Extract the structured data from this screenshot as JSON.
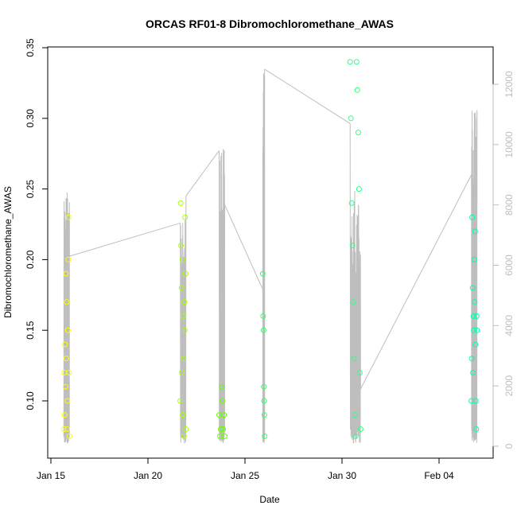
{
  "chart_data": {
    "type": "scatter",
    "title": "ORCAS RF01-8 Dibromochloromethane_AWAS",
    "xlabel": "Date",
    "ylabel": "Dibromochloromethane_AWAS",
    "x_unit": "days",
    "xlim": [
      "Jan 15 00:00",
      "Feb 07 00:00"
    ],
    "ylim": [
      0.07,
      0.35
    ],
    "x_ticks": [
      {
        "date": "Jan 15",
        "label": "Jan 15"
      },
      {
        "date": "Jan 20",
        "label": "Jan 20"
      },
      {
        "date": "Jan 25",
        "label": "Jan 25"
      },
      {
        "date": "Jan 30",
        "label": "Jan 30"
      },
      {
        "date": "Feb 04",
        "label": "Feb 04"
      }
    ],
    "y_ticks": [
      {
        "value": 0.1,
        "label": "0.10"
      },
      {
        "value": 0.15,
        "label": "0.15"
      },
      {
        "value": 0.2,
        "label": "0.20"
      },
      {
        "value": 0.25,
        "label": "0.25"
      },
      {
        "value": 0.3,
        "label": "0.30"
      },
      {
        "value": 0.35,
        "label": "0.35"
      }
    ],
    "y2lim": [
      -300,
      13100
    ],
    "y2_ticks": [
      {
        "value": 0,
        "label": "0"
      },
      {
        "value": 2000,
        "label": "2000"
      },
      {
        "value": 4000,
        "label": "4000"
      },
      {
        "value": 6000,
        "label": "6000"
      },
      {
        "value": 8000,
        "label": "8000"
      },
      {
        "value": 10000,
        "label": "10000"
      },
      {
        "value": 12000,
        "label": "12000"
      }
    ],
    "grid": false,
    "legend": "none",
    "colors": {
      "line": "#bebebe",
      "axis": "#000000",
      "right_axis": "#bebebe"
    },
    "flights": [
      {
        "x": [
          "Jan 15 16:00",
          "Jan 15 16:30",
          "Jan 15 17:00",
          "Jan 15 17:30",
          "Jan 15 18:00",
          "Jan 15 18:30",
          "Jan 15 19:00",
          "Jan 15 19:30",
          "Jan 15 20:00",
          "Jan 15 20:30",
          "Jan 15 21:00",
          "Jan 15 21:30",
          "Jan 15 22:00",
          "Jan 15 22:30",
          "Jan 15 23:00"
        ],
        "y": [
          0.08,
          0.12,
          0.09,
          0.14,
          0.11,
          0.19,
          0.13,
          0.17,
          0.08,
          0.1,
          0.15,
          0.2,
          0.23,
          0.12,
          0.075
        ],
        "color": "#ffff00",
        "alt_start": 300,
        "alt_peak": 8500,
        "alt_end": 6300
      },
      {
        "x": [
          "Jan 21 16:00",
          "Jan 21 16:30",
          "Jan 21 17:00",
          "Jan 21 17:30",
          "Jan 21 18:00",
          "Jan 21 18:30",
          "Jan 21 19:00",
          "Jan 21 19:30",
          "Jan 21 20:00",
          "Jan 21 20:30",
          "Jan 21 21:00",
          "Jan 21 21:30",
          "Jan 21 22:00",
          "Jan 21 22:30",
          "Jan 21 23:00"
        ],
        "y": [
          0.1,
          0.24,
          0.21,
          0.18,
          0.12,
          0.2,
          0.09,
          0.16,
          0.13,
          0.075,
          0.17,
          0.15,
          0.23,
          0.19,
          0.08
        ],
        "color": "#a6ff00",
        "alt_start": 7400,
        "alt_peak": 7600,
        "alt_end": 8300
      },
      {
        "x": [
          "Jan 23 16:00",
          "Jan 23 17:00",
          "Jan 23 18:00",
          "Jan 23 19:00",
          "Jan 23 20:00",
          "Jan 23 21:00",
          "Jan 23 22:00",
          "Jan 23 23:00"
        ],
        "y": [
          0.09,
          0.075,
          0.08,
          0.11,
          0.1,
          0.08,
          0.09,
          0.075
        ],
        "color": "#66ff00",
        "alt_start": 9800,
        "alt_peak": 9900,
        "alt_end": 8000
      },
      {
        "x": [
          "Jan 25 22:00",
          "Jan 25 22:30",
          "Jan 25 23:00",
          "Jan 25 23:20",
          "Jan 25 23:40",
          "Jan 26 00:00",
          "Jan 26 00:20"
        ],
        "y": [
          0.19,
          0.16,
          0.15,
          0.11,
          0.1,
          0.09,
          0.075
        ],
        "color": "#33ff66",
        "alt_start": 5200,
        "alt_peak": 12500,
        "alt_end": 12500
      },
      {
        "x": [
          "Jan 30 10:00",
          "Jan 30 11:00",
          "Jan 30 12:00",
          "Jan 30 13:00",
          "Jan 30 14:00",
          "Jan 30 15:00",
          "Jan 30 16:00",
          "Jan 30 17:00",
          "Jan 30 18:00",
          "Jan 30 19:00",
          "Jan 30 20:00",
          "Jan 30 21:00",
          "Jan 30 22:00",
          "Jan 30 23:00"
        ],
        "y": [
          0.34,
          0.3,
          0.24,
          0.21,
          0.17,
          0.13,
          0.09,
          0.075,
          0.34,
          0.32,
          0.29,
          0.25,
          0.12,
          0.08
        ],
        "color": "#33ff88",
        "alt_start": 10700,
        "alt_peak": 8500,
        "alt_end": 1900
      },
      {
        "x": [
          "Feb 05 16:00",
          "Feb 05 16:30",
          "Feb 05 17:00",
          "Feb 05 17:30",
          "Feb 05 18:00",
          "Feb 05 18:30",
          "Feb 05 19:00",
          "Feb 05 19:30",
          "Feb 05 20:00",
          "Feb 05 20:30",
          "Feb 05 21:00",
          "Feb 05 21:30",
          "Feb 05 22:00",
          "Feb 05 22:30",
          "Feb 05 23:00"
        ],
        "y": [
          0.1,
          0.13,
          0.23,
          0.18,
          0.12,
          0.16,
          0.15,
          0.2,
          0.17,
          0.22,
          0.14,
          0.1,
          0.08,
          0.16,
          0.15
        ],
        "color": "#00ffaa",
        "alt_start": 9000,
        "alt_peak": 11200,
        "alt_end": 8000
      }
    ]
  }
}
